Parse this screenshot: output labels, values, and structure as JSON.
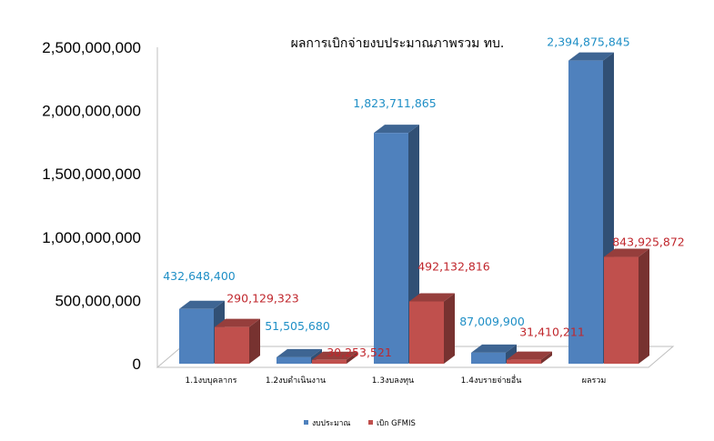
{
  "chart_data": {
    "type": "bar",
    "title": "ผลการเบิกจ่ายงบประมาณภาพรวม  ทบ.",
    "categories": [
      "1.1งบบุคลากร",
      "1.2งบดำเนินงาน",
      "1.3งบลงทุน",
      "1.4งบรายจ่ายอื่น",
      "ผลรวม"
    ],
    "series": [
      {
        "name": "งบประมาณ",
        "values": [
          432648400,
          51505680,
          1823711865,
          87009900,
          2394875845
        ],
        "labels": [
          "432,648,400",
          "51,505,680",
          "1,823,711,865",
          "87,009,900",
          "2,394,875,845"
        ],
        "color": "#4F81BD",
        "label_color": "#1F8FC6"
      },
      {
        "name": "เบิก GFMIS",
        "values": [
          290129323,
          30253521,
          492132816,
          31410211,
          843925872
        ],
        "labels": [
          "290,129,323",
          "30,253,521",
          "492,132,816",
          "31,410,211",
          "843,925,872"
        ],
        "color": "#C0504D",
        "label_color": "#C0272D"
      }
    ],
    "yticks": [
      "0",
      "500,000,000",
      "1,000,000,000",
      "1,500,000,000",
      "2,000,000,000",
      "2,500,000,000"
    ],
    "ylim": [
      0,
      2500000000
    ],
    "grid": false,
    "legend_position": "bottom",
    "style": "3d-column"
  }
}
